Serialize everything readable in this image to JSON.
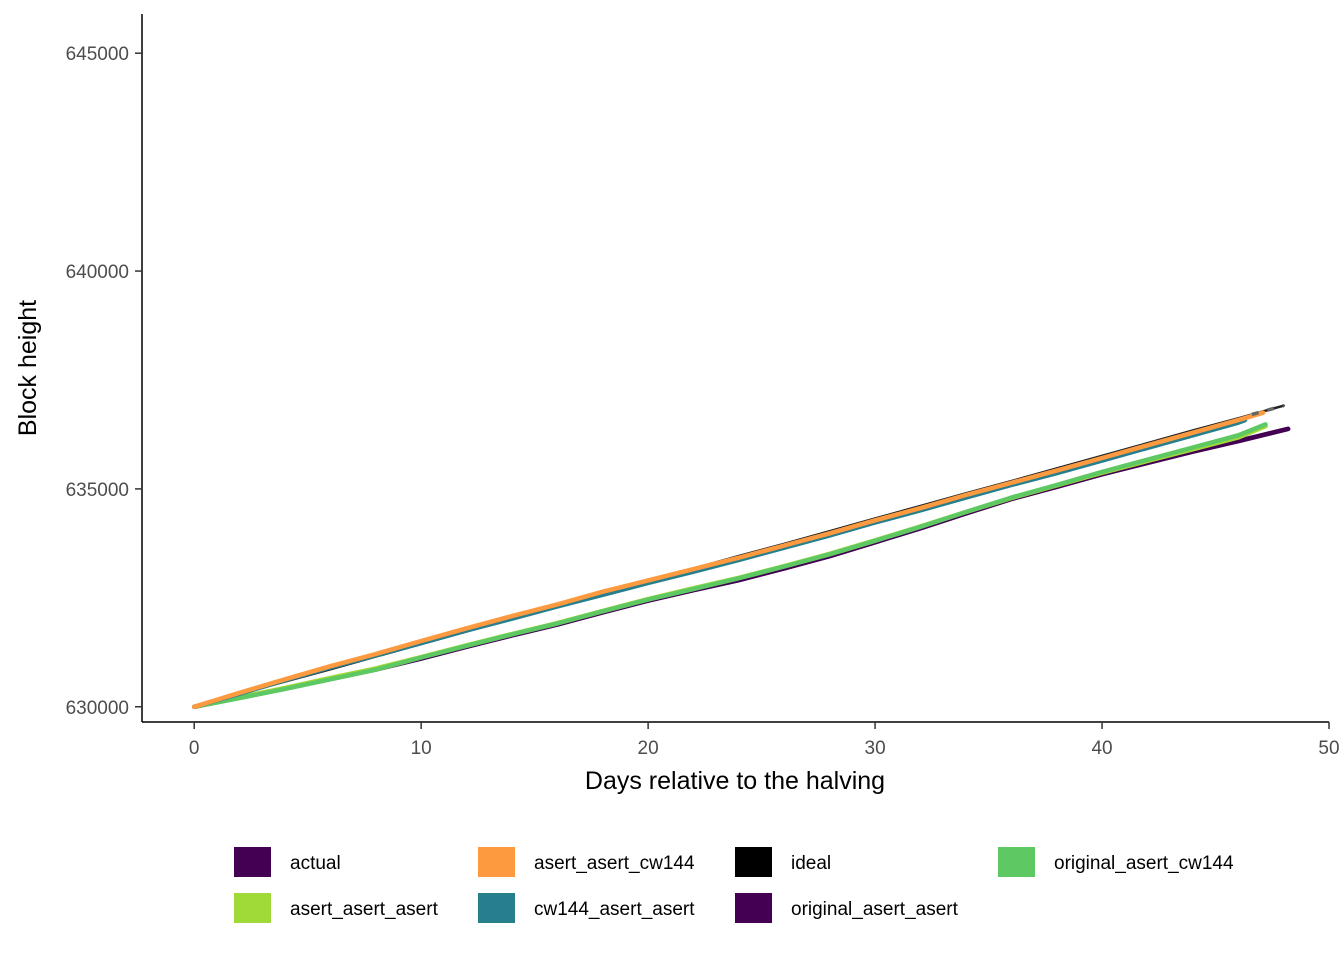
{
  "chart_data": {
    "type": "line",
    "xlabel": "Days relative to the halving",
    "ylabel": "Block height",
    "xlim": [
      -2.3,
      50
    ],
    "ylim": [
      629650,
      645900
    ],
    "x_ticks": [
      0,
      10,
      20,
      30,
      40,
      50
    ],
    "y_ticks": [
      630000,
      635000,
      640000,
      645000
    ],
    "x_tick_labels": [
      "0",
      "10",
      "20",
      "30",
      "40",
      "50"
    ],
    "y_tick_labels": [
      "630000",
      "635000",
      "640000",
      "645000"
    ],
    "grid": false,
    "legend_position": "bottom",
    "series": [
      {
        "name": "actual",
        "color": "#440154",
        "x": [
          0,
          2,
          4,
          6,
          8,
          10,
          12,
          14,
          16,
          18,
          20,
          22,
          24,
          26,
          28,
          30,
          32,
          34,
          36,
          38,
          40,
          42,
          44,
          46,
          48.2
        ],
        "y": [
          630000,
          630210,
          630420,
          630640,
          630860,
          631110,
          631380,
          631640,
          631890,
          632170,
          632440,
          632680,
          632910,
          633180,
          633460,
          633780,
          634100,
          634440,
          634770,
          635050,
          635340,
          635600,
          635860,
          636100,
          636380
        ]
      },
      {
        "name": "asert_asert_asert",
        "color": "#a0da39",
        "x": [
          0,
          2,
          4,
          6,
          8,
          10,
          12,
          14,
          16,
          18,
          20,
          22,
          24,
          26,
          28,
          30,
          32,
          34,
          36,
          38,
          40,
          42,
          44,
          46,
          47.2
        ],
        "y": [
          630000,
          630220,
          630430,
          630660,
          630880,
          631140,
          631410,
          631670,
          631920,
          632200,
          632470,
          632720,
          632960,
          633230,
          633510,
          633820,
          634140,
          634470,
          634790,
          635080,
          635370,
          635640,
          635910,
          636180,
          636440
        ]
      },
      {
        "name": "asert_asert_cw144",
        "color": "#fd9a3f",
        "x": [
          0,
          2,
          4,
          6,
          8,
          10,
          12,
          14,
          16,
          18,
          20,
          22,
          24,
          26,
          28,
          30,
          32,
          34,
          36,
          38,
          40,
          42,
          44,
          46,
          47.1
        ],
        "y": [
          630000,
          630320,
          630630,
          630930,
          631210,
          631510,
          631800,
          632080,
          632350,
          632640,
          632900,
          633160,
          633420,
          633700,
          633980,
          634280,
          634560,
          634860,
          635140,
          635420,
          635710,
          636000,
          636290,
          636580,
          636750
        ]
      },
      {
        "name": "cw144_asert_asert",
        "color": "#277f8e",
        "x": [
          0,
          2,
          4,
          6,
          8,
          10,
          12,
          14,
          16,
          18,
          20,
          22,
          24,
          26,
          28,
          30,
          32,
          34,
          36,
          38,
          40,
          42,
          44,
          46,
          46.3
        ],
        "y": [
          630000,
          630300,
          630610,
          630900,
          631180,
          631460,
          631750,
          632020,
          632300,
          632570,
          632840,
          633100,
          633370,
          633650,
          633930,
          634230,
          634510,
          634800,
          635090,
          635360,
          635650,
          635940,
          636230,
          636520,
          636580
        ]
      },
      {
        "name": "ideal",
        "color": "#000000",
        "x": [
          0,
          2,
          4,
          6,
          8,
          10,
          12,
          14,
          16,
          18,
          20,
          22,
          24,
          26,
          28,
          30,
          32,
          34,
          36,
          38,
          40,
          42,
          44,
          46,
          48
        ],
        "y": [
          630000,
          630290,
          630580,
          630860,
          631150,
          631440,
          631730,
          632020,
          632300,
          632590,
          632880,
          633170,
          633460,
          633740,
          634030,
          634320,
          634610,
          634900,
          635180,
          635470,
          635760,
          636050,
          636340,
          636620,
          636910
        ]
      },
      {
        "name": "original_asert_asert",
        "color": "#440154",
        "x": [
          0,
          2,
          4,
          6,
          8,
          10,
          12,
          14,
          16,
          18,
          20,
          22,
          24,
          26,
          28,
          30,
          32,
          34,
          36,
          38,
          40,
          42,
          44,
          46,
          48.2
        ],
        "y": [
          630000,
          630205,
          630415,
          630635,
          630855,
          631105,
          631375,
          631635,
          631885,
          632165,
          632435,
          632675,
          632905,
          633175,
          633455,
          633775,
          634095,
          634435,
          634765,
          635045,
          635335,
          635595,
          635855,
          636095,
          636375
        ]
      },
      {
        "name": "original_asert_cw144",
        "color": "#5ec962",
        "x": [
          0,
          2,
          4,
          6,
          8,
          10,
          12,
          14,
          16,
          18,
          20,
          22,
          24,
          26,
          28,
          30,
          32,
          34,
          36,
          38,
          40,
          42,
          44,
          46,
          47.2
        ],
        "y": [
          630000,
          630200,
          630410,
          630630,
          630850,
          631130,
          631400,
          631660,
          631910,
          632190,
          632460,
          632700,
          632950,
          633220,
          633500,
          633810,
          634130,
          634470,
          634800,
          635090,
          635390,
          635670,
          635950,
          636230,
          636480
        ]
      }
    ],
    "draw_order": [
      "ideal",
      "actual",
      "original_asert_asert",
      "asert_asert_asert",
      "original_asert_cw144",
      "cw144_asert_asert",
      "asert_asert_cw144"
    ],
    "legend_rows": [
      [
        "actual",
        "asert_asert_cw144",
        "ideal",
        "original_asert_cw144"
      ],
      [
        "asert_asert_asert",
        "cw144_asert_asert",
        "original_asert_asert"
      ]
    ]
  }
}
